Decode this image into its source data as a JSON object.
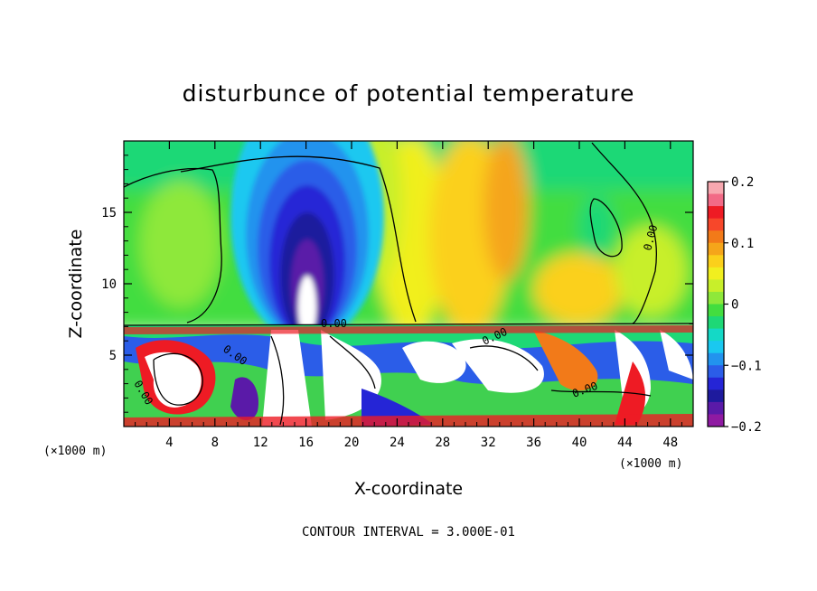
{
  "chart_data": {
    "type": "heatmap",
    "title": "disturbunce of potential temperature",
    "xlabel": "X-coordinate",
    "ylabel": "Z-coordinate",
    "x_unit": "(×1000 m)",
    "x_ticks": [
      4,
      8,
      12,
      16,
      20,
      24,
      28,
      32,
      36,
      40,
      44,
      48
    ],
    "y_ticks": [
      5,
      10,
      15
    ],
    "xlim": [
      0,
      50
    ],
    "ylim": [
      0,
      20
    ],
    "colorbar": {
      "range": [
        -0.2,
        0.2
      ],
      "tick_values": [
        0.2,
        0.1,
        0,
        -0.1,
        -0.2
      ],
      "tick_labels": [
        "0.2",
        "0.1",
        "0",
        "−0.1",
        "−0.2"
      ],
      "colors": [
        "#f7a8b0",
        "#f26a86",
        "#ee1b24",
        "#f7472a",
        "#f27a19",
        "#f5a51a",
        "#fbd01b",
        "#f1ef1f",
        "#c8ef2a",
        "#8ee83a",
        "#43dd3f",
        "#1ed876",
        "#14d9c6",
        "#1ac8f0",
        "#2293ee",
        "#2b5de8",
        "#2525d6",
        "#1e1a9d",
        "#5a1aa8",
        "#8f1aa2"
      ]
    },
    "contour_labels": [
      "0.00",
      "0.00",
      "0.00",
      "0.00",
      "0.00",
      "0.00"
    ],
    "contour_interval_label": "CONTOUR INTERVAL = 3.000E-01",
    "grid": false
  }
}
